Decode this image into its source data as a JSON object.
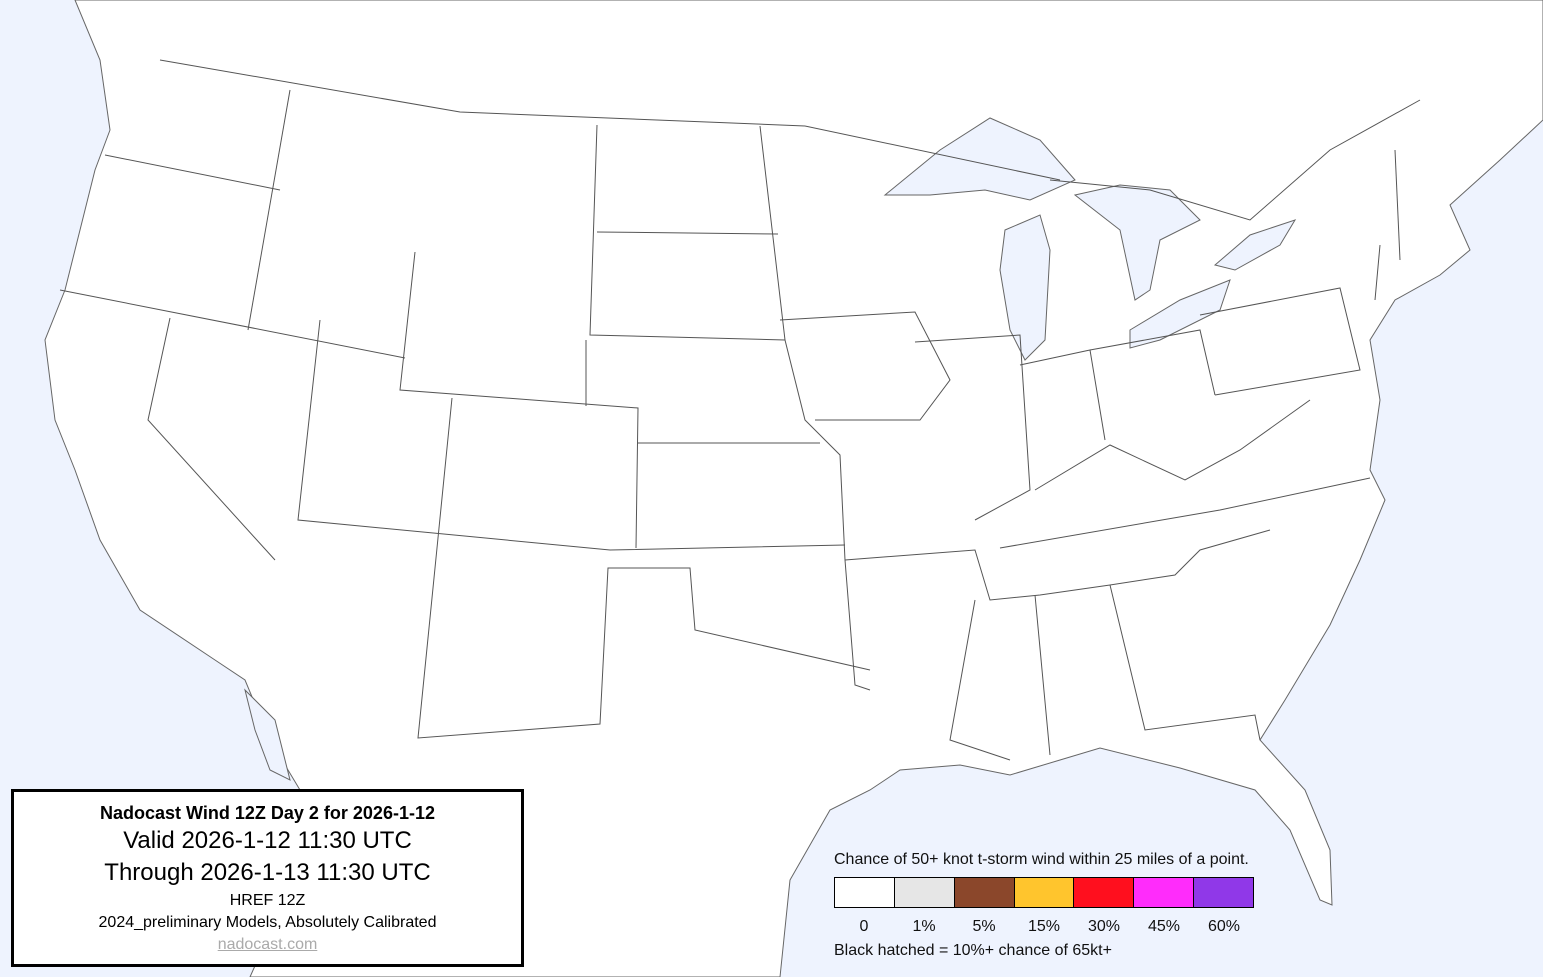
{
  "info": {
    "title": "Nadocast Wind 12Z Day 2 for 2026-1-12",
    "valid": "Valid 2026-1-12 11:30 UTC",
    "through": "Through 2026-1-13 11:30 UTC",
    "model": "HREF 12Z",
    "models_note": "2024_preliminary Models, Absolutely Calibrated",
    "link": "nadocast.com"
  },
  "legend": {
    "title": "Chance of 50+ knot t-storm wind within 25 miles of a point.",
    "bins": [
      {
        "label": "0",
        "color": "#ffffff"
      },
      {
        "label": "1%",
        "color": "#e6e6e6"
      },
      {
        "label": "5%",
        "color": "#8b472b"
      },
      {
        "label": "15%",
        "color": "#ffc52d"
      },
      {
        "label": "30%",
        "color": "#ff0f1e"
      },
      {
        "label": "45%",
        "color": "#ff2cfb"
      },
      {
        "label": "60%",
        "color": "#9038e8"
      }
    ],
    "hatch_note": "Black hatched = 10%+ chance of 65kt+"
  },
  "colors": {
    "water": "#eef3fe",
    "land": "#ffffff",
    "border": "#555555"
  }
}
